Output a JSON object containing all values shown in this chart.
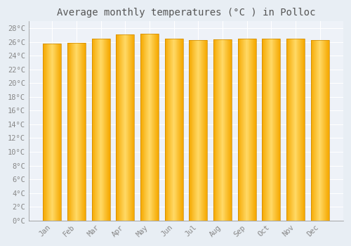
{
  "title": "Average monthly temperatures (°C ) in Polloc",
  "months": [
    "Jan",
    "Feb",
    "Mar",
    "Apr",
    "May",
    "Jun",
    "Jul",
    "Aug",
    "Sep",
    "Oct",
    "Nov",
    "Dec"
  ],
  "temperatures": [
    25.8,
    25.9,
    26.5,
    27.1,
    27.2,
    26.5,
    26.3,
    26.4,
    26.5,
    26.5,
    26.5,
    26.3
  ],
  "bar_color_center": "#FFD966",
  "bar_color_edge": "#F5A800",
  "ylim": [
    0,
    29
  ],
  "yticks": [
    0,
    2,
    4,
    6,
    8,
    10,
    12,
    14,
    16,
    18,
    20,
    22,
    24,
    26,
    28
  ],
  "background_color": "#E8EEF4",
  "plot_bg_color": "#EEF2F8",
  "grid_color": "#FFFFFF",
  "title_fontsize": 10,
  "tick_fontsize": 7.5,
  "bar_width": 0.75,
  "title_color": "#555555",
  "tick_color": "#888888"
}
